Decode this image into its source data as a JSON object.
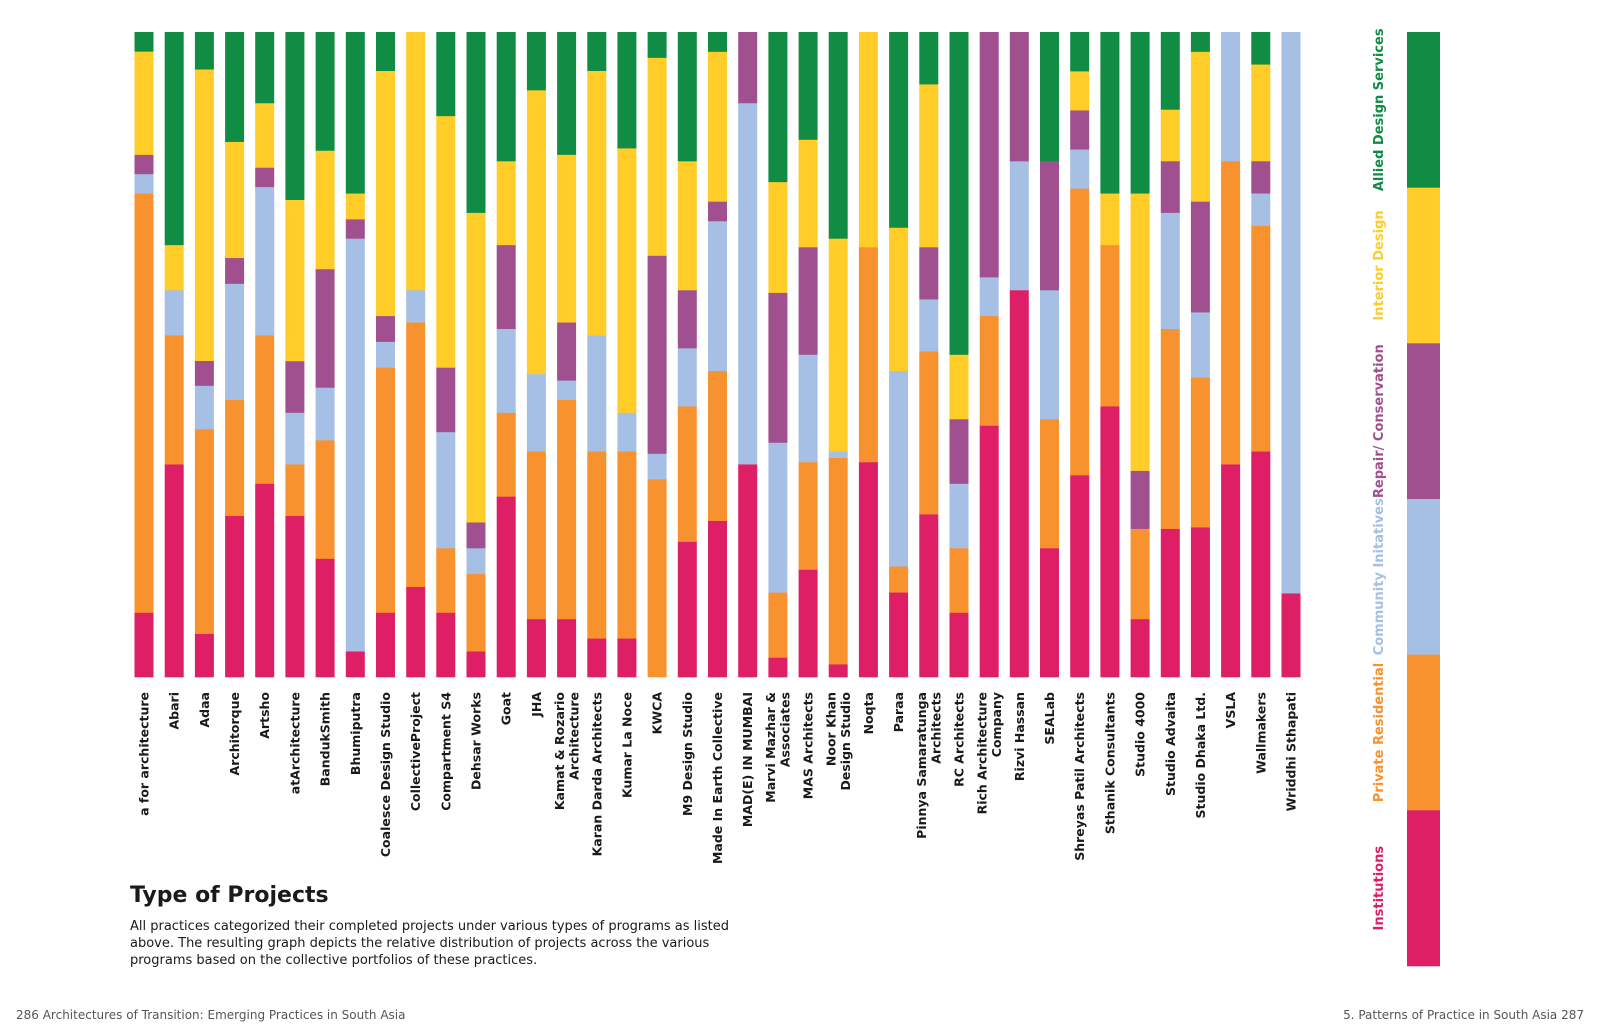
{
  "page": {
    "title": "Type of Projects",
    "description": "All practices categorized their completed projects under various types of programs as listed above. The resulting graph depicts the relative distribution of projects across the various programs based on the collective portfolios of these practices.",
    "footer_left": "286  Architectures of Transition: Emerging Practices in South Asia",
    "footer_right": "5. Patterns of Practice in South Asia  287"
  },
  "chart_data": {
    "type": "bar",
    "stacked": true,
    "normalized": true,
    "ylim": [
      0,
      100
    ],
    "legend_position": "right",
    "categories": [
      "a for architecture",
      "Abari",
      "Adaa",
      "Architorque",
      "Artsho",
      "atArchitecture",
      "BandukSmith",
      "Bhumiputra",
      "Coalesce Design Studio",
      "CollectiveProject",
      "Compartment S4",
      "Dehsar Works",
      "Goat",
      "JHA",
      "Kamat & Rozario Architecture",
      "Karan Darda Architects",
      "Kumar La Noce",
      "KWCA",
      "M9 Design Studio",
      "Made In Earth Collective",
      "MAD(E) IN MUMBAI",
      "Marvi Mazhar & Associates",
      "MAS Architects",
      "Noor Khan Design Studio",
      "Noqta",
      "Paraa",
      "Pinnya Samaratunga Architects",
      "RC Architects",
      "Rich Architecture Company",
      "Rizvi Hassan",
      "SEALab",
      "Shreyas Patil Architects",
      "Sthanik Consultants",
      "Studio 4000",
      "Studio Advaita",
      "Studio Dhaka Ltd.",
      "VSLA",
      "Wallmakers",
      "Wriddhi Sthapati"
    ],
    "category_lines": [
      [
        "a for architecture"
      ],
      [
        "Abari"
      ],
      [
        "Adaa"
      ],
      [
        "Architorque"
      ],
      [
        "Artsho"
      ],
      [
        "atArchitecture"
      ],
      [
        "BandukSmith"
      ],
      [
        "Bhumiputra"
      ],
      [
        "Coalesce Design Studio"
      ],
      [
        "CollectiveProject"
      ],
      [
        "Compartment S4"
      ],
      [
        "Dehsar Works"
      ],
      [
        "Goat"
      ],
      [
        "JHA"
      ],
      [
        "Kamat & Rozario",
        "Architecture"
      ],
      [
        "Karan Darda Architects"
      ],
      [
        "Kumar La Noce"
      ],
      [
        "KWCA"
      ],
      [
        "M9 Design Studio"
      ],
      [
        "Made In Earth Collective"
      ],
      [
        "MAD(E) IN MUMBAI"
      ],
      [
        "Marvi Mazhar &",
        "Associates"
      ],
      [
        "MAS Architects"
      ],
      [
        "Noor Khan",
        "Design Studio"
      ],
      [
        "Noqta"
      ],
      [
        "Paraa"
      ],
      [
        "Pinnya Samaratunga",
        "Architects"
      ],
      [
        "RC Architects"
      ],
      [
        "Rich Architecture",
        "Company"
      ],
      [
        "Rizvi Hassan"
      ],
      [
        "SEALab"
      ],
      [
        "Shreyas Patil Architects"
      ],
      [
        "Sthanik Consultants"
      ],
      [
        "Studio 4000"
      ],
      [
        "Studio Advaita"
      ],
      [
        "Studio Dhaka Ltd."
      ],
      [
        "VSLA"
      ],
      [
        "Wallmakers"
      ],
      [
        "Wriddhi Sthapati"
      ]
    ],
    "series": [
      {
        "name": "Institutions",
        "color": "#DE1F66",
        "values": [
          10,
          33,
          7,
          25,
          30,
          25,
          18,
          4,
          10,
          14,
          10,
          4,
          28,
          9,
          9,
          6,
          6,
          0,
          21,
          24,
          33,
          3,
          20,
          2,
          33,
          13,
          25,
          10,
          39,
          60,
          20,
          31,
          42,
          9,
          23,
          23,
          33,
          35,
          13
        ]
      },
      {
        "name": "Private Residential",
        "color": "#F7922F",
        "values": [
          65,
          20,
          33,
          18,
          23,
          8,
          18,
          0,
          38,
          41,
          10,
          12,
          13,
          26,
          34,
          29,
          29,
          31,
          21,
          23,
          0,
          10,
          20,
          32,
          33,
          4,
          25,
          10,
          17,
          0,
          20,
          44,
          25,
          14,
          31,
          23,
          47,
          35,
          0
        ]
      },
      {
        "name": "Community Initatives",
        "color": "#A6BFE5",
        "values": [
          3,
          7,
          7,
          18,
          23,
          8,
          8,
          64,
          4,
          5,
          18,
          4,
          13,
          12,
          3,
          18,
          6,
          4,
          9,
          23,
          56,
          23,
          20,
          1,
          0,
          30,
          8,
          10,
          6,
          20,
          20,
          6,
          0,
          0,
          18,
          10,
          20,
          5,
          87
        ]
      },
      {
        "name": "Repair/ Conservation",
        "color": "#A1508F",
        "values": [
          3,
          0,
          4,
          4,
          3,
          8,
          18,
          3,
          4,
          0,
          10,
          4,
          13,
          0,
          9,
          0,
          0,
          31,
          9,
          3,
          11,
          23,
          20,
          0,
          0,
          0,
          8,
          10,
          38,
          20,
          20,
          6,
          0,
          9,
          8,
          17,
          0,
          5,
          0
        ]
      },
      {
        "name": "Interior Design",
        "color": "#FFCC28",
        "values": [
          16,
          7,
          47,
          18,
          10,
          25,
          18,
          4,
          38,
          40,
          39,
          48,
          13,
          44,
          26,
          41,
          41,
          31,
          20,
          23,
          0,
          17,
          20,
          33,
          33,
          22,
          25,
          10,
          0,
          0,
          0,
          6,
          8,
          43,
          8,
          23,
          0,
          15,
          0
        ]
      },
      {
        "name": "Allied Design Services",
        "color": "#118C45",
        "values": [
          3,
          33,
          6,
          17,
          11,
          26,
          18,
          25,
          6,
          0,
          13,
          28,
          20,
          9,
          19,
          6,
          18,
          4,
          20,
          3,
          0,
          23,
          20,
          32,
          0,
          30,
          8,
          50,
          0,
          0,
          20,
          6,
          25,
          25,
          12,
          3,
          0,
          5,
          0
        ]
      }
    ]
  }
}
